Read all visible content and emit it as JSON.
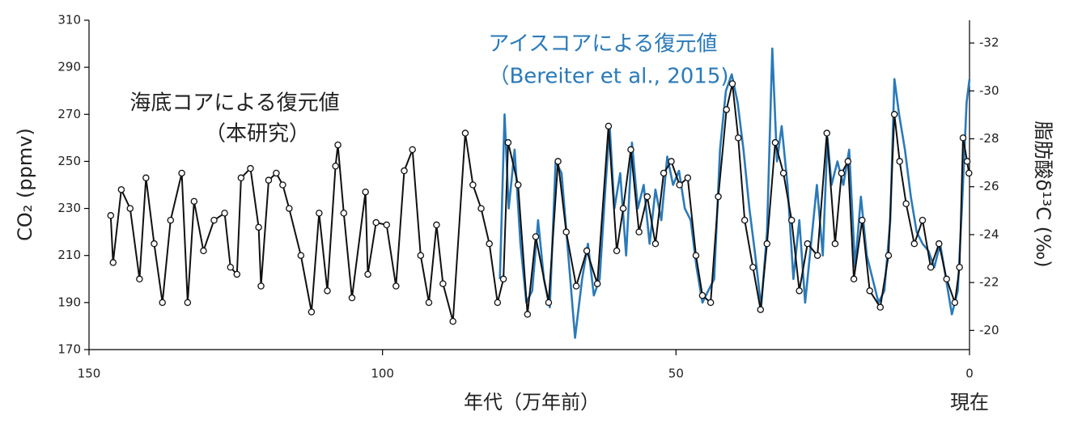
{
  "chart_data": {
    "type": "line",
    "x_label": "年代（万年前）",
    "x_end_label": "現在",
    "y_label": "CO₂ (ppmv)",
    "y2_label": "脂肪酸δ¹³C (‰)",
    "xlim": [
      150,
      0
    ],
    "xticks": [
      150,
      100,
      50,
      0
    ],
    "ylim": [
      170,
      310
    ],
    "yticks": [
      170,
      190,
      210,
      230,
      250,
      270,
      290,
      310
    ],
    "y2lim": [
      -19.2,
      -32.95
    ],
    "y2ticks": [
      -20,
      -22,
      -24,
      -26,
      -28,
      -30,
      -32
    ],
    "series": [
      {
        "name": "アイスコアによる復元値",
        "source": "（Bereiter et al., 2015)",
        "color": "#2a7ab9",
        "markers": false,
        "x": [
          80,
          79.2,
          78.5,
          77.5,
          76.5,
          75.5,
          74.5,
          73.5,
          72.5,
          71.5,
          70.5,
          69.5,
          68.5,
          67.2,
          66,
          65,
          64,
          63,
          62,
          61.3,
          60.5,
          59.5,
          58.5,
          57.5,
          56.5,
          55.5,
          54.5,
          53.5,
          52.5,
          51.5,
          50.5,
          49.5,
          48.5,
          47.5,
          46.5,
          45.5,
          44.5,
          43.5,
          42.5,
          41.5,
          40.5,
          39.5,
          38.5,
          37.5,
          36.5,
          35.5,
          34.5,
          33.6,
          32.8,
          32,
          31,
          30,
          29,
          28,
          27,
          26,
          25,
          24.2,
          23.5,
          22.5,
          21.5,
          20.5,
          19.5,
          18.5,
          17.5,
          16.5,
          15.5,
          14.5,
          13.5,
          12.8,
          12,
          11,
          10,
          9,
          8,
          7,
          6,
          5,
          4,
          3,
          2,
          1.3,
          0.5,
          0
        ],
        "values": [
          200,
          270,
          230,
          255,
          215,
          190,
          195,
          225,
          200,
          188,
          250,
          245,
          215,
          175,
          200,
          215,
          193,
          200,
          240,
          265,
          230,
          245,
          210,
          258,
          230,
          240,
          215,
          238,
          225,
          252,
          240,
          246,
          230,
          225,
          205,
          190,
          195,
          200,
          255,
          280,
          287,
          275,
          255,
          230,
          210,
          188,
          220,
          298,
          250,
          265,
          240,
          200,
          225,
          190,
          215,
          240,
          210,
          260,
          240,
          250,
          240,
          255,
          205,
          235,
          210,
          200,
          190,
          195,
          225,
          285,
          270,
          255,
          235,
          220,
          215,
          212,
          205,
          215,
          200,
          185,
          195,
          230,
          275,
          285
        ]
      },
      {
        "name": "海底コアによる復元値",
        "source": "（本研究）",
        "color": "#111111",
        "markers": true,
        "x": [
          146.3,
          145.9,
          144.5,
          143,
          141.4,
          140.3,
          138.9,
          137.5,
          136.1,
          134.2,
          133.2,
          132.1,
          130.5,
          128.7,
          126.9,
          125.9,
          124.8,
          124.1,
          122.5,
          121.1,
          120.7,
          119.4,
          118.1,
          117,
          115.9,
          113.9,
          112.1,
          110.8,
          109.4,
          108,
          107.6,
          106.6,
          105.2,
          102.9,
          102.5,
          101.1,
          99.3,
          97.7,
          96.3,
          94.9,
          93.5,
          92.1,
          90.8,
          89.7,
          88,
          85.9,
          84.6,
          83.2,
          81.8,
          80.4,
          79.4,
          78.6,
          76.9,
          75.3,
          73.9,
          71.7,
          70.1,
          68.7,
          67,
          65.2,
          63.4,
          61.5,
          60.1,
          59,
          57.7,
          56.3,
          54.9,
          53.5,
          52.1,
          50.8,
          49.4,
          48,
          46.6,
          45.5,
          44.1,
          42.8,
          41.4,
          40.4,
          39.4,
          38.3,
          36.9,
          35.6,
          34.5,
          33.1,
          31.7,
          30.3,
          29,
          27.6,
          25.9,
          24.3,
          22.9,
          21.8,
          20.7,
          19.7,
          18.3,
          17,
          15.2,
          13.8,
          12.8,
          11.9,
          10.8,
          9.4,
          8,
          6.6,
          5.2,
          3.9,
          2.5,
          1.7,
          1.1,
          0.4,
          0.1
        ],
        "values": [
          227,
          207,
          238,
          230,
          200,
          243,
          215,
          190,
          225,
          245,
          190,
          233,
          212,
          225,
          228,
          205,
          202,
          243,
          247,
          222,
          197,
          242,
          245,
          240,
          230,
          210,
          186,
          228,
          195,
          248,
          257,
          228,
          192,
          237,
          202,
          224,
          223,
          197,
          246,
          255,
          210,
          190,
          223,
          198,
          182,
          262,
          240,
          230,
          215,
          190,
          200,
          258,
          240,
          185,
          218,
          190,
          250,
          220,
          197,
          212,
          198,
          265,
          212,
          230,
          255,
          220,
          235,
          215,
          245,
          250,
          240,
          243,
          210,
          193,
          190,
          235,
          272,
          283,
          260,
          225,
          205,
          187,
          215,
          258,
          245,
          225,
          195,
          215,
          210,
          262,
          215,
          245,
          250,
          200,
          225,
          195,
          188,
          210,
          270,
          250,
          232,
          215,
          225,
          205,
          215,
          200,
          190,
          205,
          260,
          250,
          245
        ]
      }
    ]
  }
}
